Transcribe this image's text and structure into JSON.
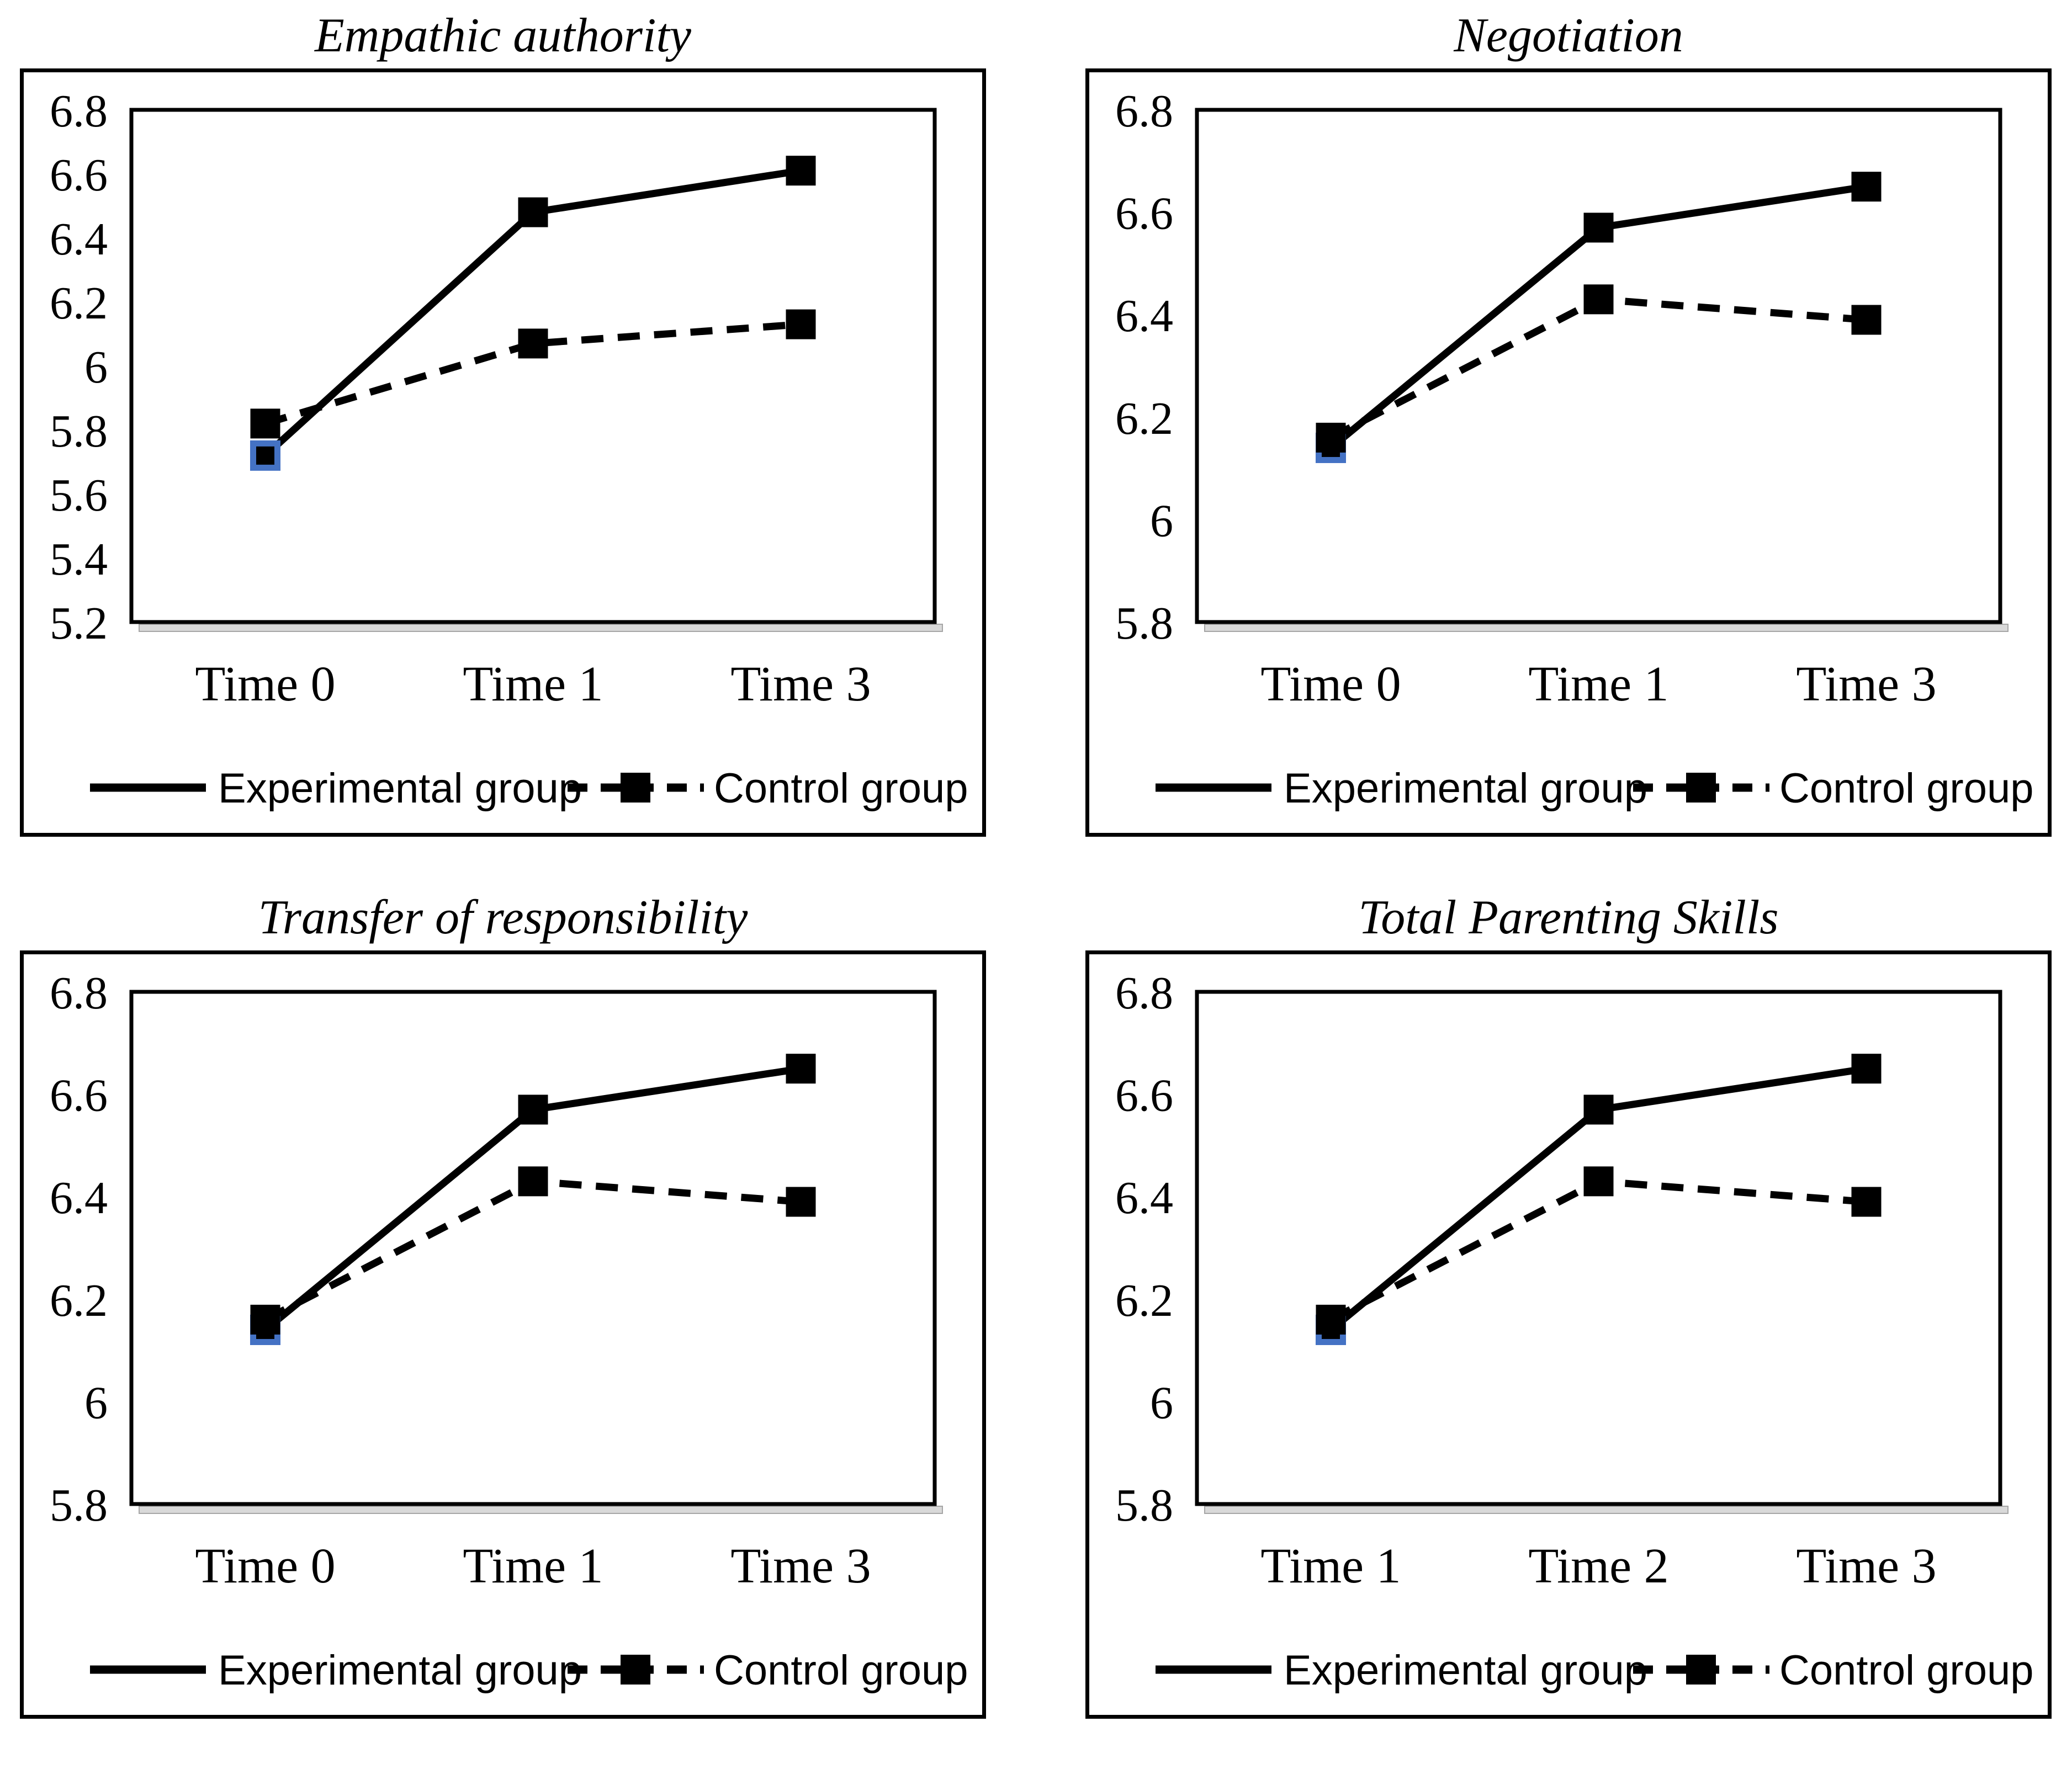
{
  "page": {
    "background": "#ffffff"
  },
  "style": {
    "line_color": "#000000",
    "marker_color": "#000000",
    "frame_color": "#000000",
    "highlight_border_color": "#4472C4",
    "axis_shadow_color": "#d9d9d9",
    "text_color": "#000000"
  },
  "legend": {
    "experimental_label": "Experimental group",
    "control_label": "Control group"
  },
  "chart_data": [
    {
      "type": "line",
      "title": "Empathic authority",
      "categories": [
        "Time 0",
        "Time 1",
        "Time 3"
      ],
      "series": [
        {
          "name": "Experimental group",
          "line_style": "solid",
          "marker": "square",
          "values": [
            5.72,
            6.48,
            6.61
          ]
        },
        {
          "name": "Control group",
          "line_style": "dashed",
          "marker": "square",
          "values": [
            5.82,
            6.07,
            6.13
          ]
        }
      ],
      "ylim": [
        5.2,
        6.8
      ],
      "ytick_labels": [
        "6.8",
        "6.6",
        "6.4",
        "6.2",
        "6",
        "5.8",
        "5.6",
        "5.4",
        "5.2"
      ],
      "xlabel": "",
      "ylabel": "",
      "grid": false,
      "legend_position": "bottom",
      "highlight_point": {
        "series": 0,
        "index": 0
      }
    },
    {
      "type": "line",
      "title": "Negotiation",
      "categories": [
        "Time 0",
        "Time 1",
        "Time 3"
      ],
      "series": [
        {
          "name": "Experimental group",
          "line_style": "solid",
          "marker": "square",
          "values": [
            6.14,
            6.57,
            6.65
          ]
        },
        {
          "name": "Control group",
          "line_style": "dashed",
          "marker": "square",
          "values": [
            6.16,
            6.43,
            6.39
          ]
        }
      ],
      "ylim": [
        5.8,
        6.8
      ],
      "ytick_labels": [
        "6.8",
        "6.6",
        "6.4",
        "6.2",
        "6",
        "5.8"
      ],
      "xlabel": "",
      "ylabel": "",
      "grid": false,
      "legend_position": "bottom",
      "highlight_point": {
        "series": 0,
        "index": 0
      }
    },
    {
      "type": "line",
      "title": "Transfer of responsibility",
      "categories": [
        "Time 0",
        "Time 1",
        "Time 3"
      ],
      "series": [
        {
          "name": "Experimental group",
          "line_style": "solid",
          "marker": "square",
          "values": [
            6.14,
            6.57,
            6.65
          ]
        },
        {
          "name": "Control group",
          "line_style": "dashed",
          "marker": "square",
          "values": [
            6.16,
            6.43,
            6.39
          ]
        }
      ],
      "ylim": [
        5.8,
        6.8
      ],
      "ytick_labels": [
        "6.8",
        "6.6",
        "6.4",
        "6.2",
        "6",
        "5.8"
      ],
      "xlabel": "",
      "ylabel": "",
      "grid": false,
      "legend_position": "bottom",
      "highlight_point": {
        "series": 0,
        "index": 0
      }
    },
    {
      "type": "line",
      "title": "Total Parenting Skills",
      "categories": [
        "Time 1",
        "Time 2",
        "Time 3"
      ],
      "series": [
        {
          "name": "Experimental group",
          "line_style": "solid",
          "marker": "square",
          "values": [
            6.14,
            6.57,
            6.65
          ]
        },
        {
          "name": "Control group",
          "line_style": "dashed",
          "marker": "square",
          "values": [
            6.16,
            6.43,
            6.39
          ]
        }
      ],
      "ylim": [
        5.8,
        6.8
      ],
      "ytick_labels": [
        "6.8",
        "6.6",
        "6.4",
        "6.2",
        "6",
        "5.8"
      ],
      "xlabel": "",
      "ylabel": "",
      "grid": false,
      "legend_position": "bottom",
      "highlight_point": {
        "series": 0,
        "index": 0
      }
    }
  ]
}
